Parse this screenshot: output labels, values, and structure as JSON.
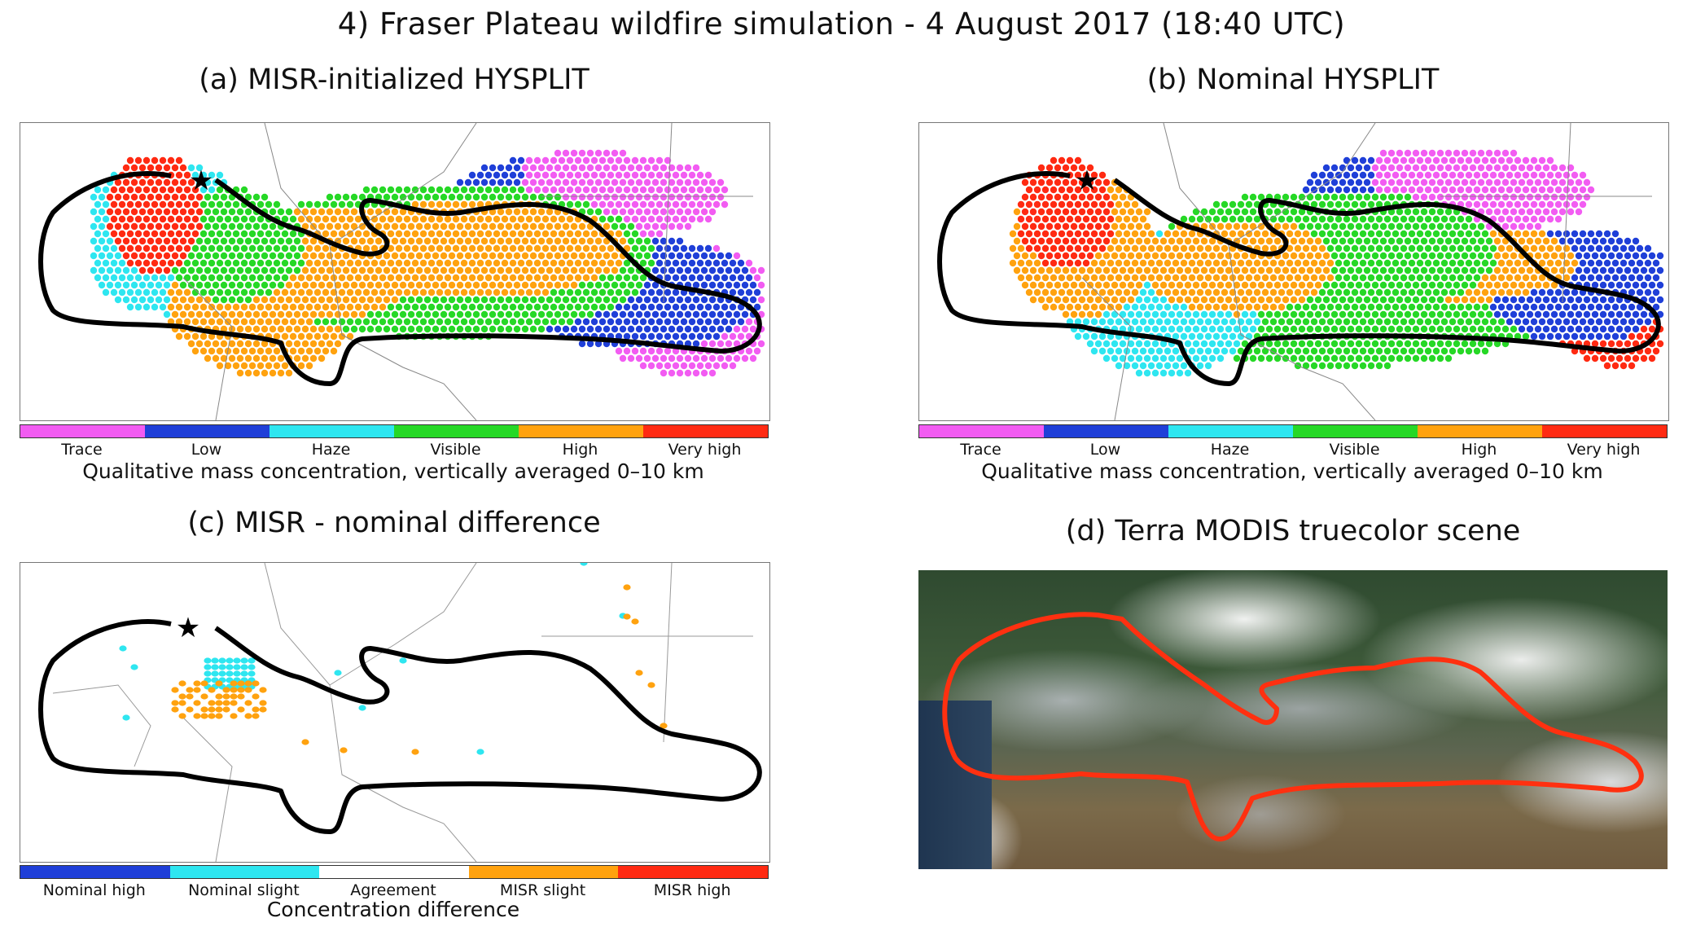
{
  "title": "4) Fraser Plateau wildfire simulation -  4 August 2017 (18:40 UTC)",
  "panels": {
    "a": {
      "title": "(a) MISR-initialized HYSPLIT",
      "legend": [
        "Trace",
        "Low",
        "Haze",
        "Visible",
        "High",
        "Very high"
      ],
      "legend_caption": "Qualitative mass concentration, vertically averaged 0–10 km"
    },
    "b": {
      "title": "(b) Nominal HYSPLIT",
      "legend": [
        "Trace",
        "Low",
        "Haze",
        "Visible",
        "High",
        "Very high"
      ],
      "legend_caption": "Qualitative mass concentration, vertically averaged 0–10 km"
    },
    "c": {
      "title": "(c) MISR - nominal difference",
      "legend": [
        "Nominal high",
        "Nominal slight",
        "Agreement",
        "MISR slight",
        "MISR high"
      ],
      "legend_caption": "Concentration difference"
    },
    "d": {
      "title": "(d) Terra MODIS truecolor scene"
    }
  },
  "colors": {
    "concentration": [
      "#f25cf2",
      "#1f3fd8",
      "#2ee6f0",
      "#26d826",
      "#ffa20f",
      "#ff2a12"
    ],
    "difference": [
      "#1f3fd8",
      "#2ee6f0",
      "#ffffff",
      "#ffa20f",
      "#ff2a12"
    ],
    "outline_black": "#000000",
    "outline_red": "#ff3010"
  },
  "icons": {
    "source": "star-icon"
  }
}
